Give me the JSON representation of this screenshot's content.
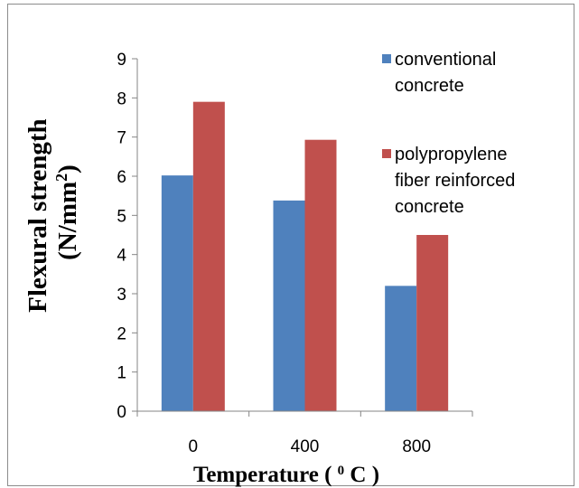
{
  "chart_data": {
    "type": "bar",
    "categories": [
      "0",
      "400",
      "800"
    ],
    "series": [
      {
        "name": "conventional concrete",
        "legend_lines": [
          "conventional",
          "concrete"
        ],
        "values": [
          6.02,
          5.38,
          3.2
        ],
        "color": "#4f81bd"
      },
      {
        "name": "polypropylene fiber reinforced concrete",
        "legend_lines": [
          "polypropylene",
          "fiber reinforced",
          "concrete"
        ],
        "values": [
          7.9,
          6.93,
          4.5
        ],
        "color": "#c0504d"
      }
    ],
    "ylim": [
      0,
      9
    ],
    "yticks": [
      0,
      1,
      2,
      3,
      4,
      5,
      6,
      7,
      8,
      9
    ],
    "ylabel": {
      "line1": "Flexural  strength",
      "line2_prefix": "(N/mm",
      "line2_sup": "2",
      "line2_suffix": ")"
    },
    "xlabel": {
      "prefix": "Temperature ( ",
      "sup": "0",
      "suffix": " C )"
    },
    "legend_position": "right",
    "grid": false
  }
}
